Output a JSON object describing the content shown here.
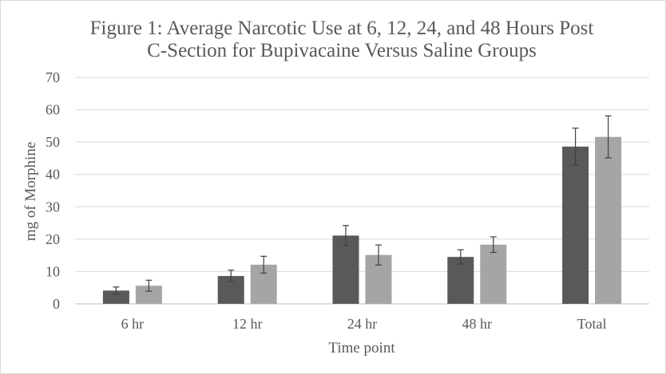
{
  "chart_data": {
    "type": "bar",
    "title": "Figure 1: Average Narcotic Use at 6, 12, 24, and 48 Hours Post C-Section for Bupivacaine Versus Saline Groups",
    "title_lines": [
      "Figure 1: Average Narcotic Use at 6, 12, 24, and 48 Hours Post",
      "C-Section for Bupivacaine Versus Saline Groups"
    ],
    "xlabel": "Time point",
    "ylabel": "mg of Morphine",
    "ylim": [
      0,
      70
    ],
    "yticks": [
      0,
      10,
      20,
      30,
      40,
      50,
      60,
      70
    ],
    "grid": true,
    "legend": "none",
    "categories": [
      "6 hr",
      "12 hr",
      "24 hr",
      "48 hr",
      "Total"
    ],
    "series": [
      {
        "color": "#595959",
        "values": [
          4.1,
          8.6,
          21.1,
          14.5,
          48.6
        ],
        "error": [
          1.1,
          1.8,
          3.1,
          2.2,
          5.7
        ]
      },
      {
        "color": "#a5a5a5",
        "values": [
          5.6,
          12.1,
          15.1,
          18.3,
          51.6
        ],
        "error": [
          1.7,
          2.6,
          3.1,
          2.4,
          6.5
        ]
      }
    ]
  }
}
